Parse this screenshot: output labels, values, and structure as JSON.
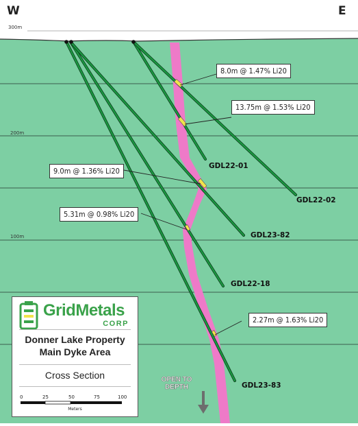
{
  "directions": {
    "west": "W",
    "east": "E"
  },
  "elevations": {
    "top": "300m",
    "mid": "200m",
    "low": "100m"
  },
  "holes": [
    {
      "id": "GDL22-01"
    },
    {
      "id": "GDL22-02"
    },
    {
      "id": "GDL23-82"
    },
    {
      "id": "GDL22-18"
    },
    {
      "id": "GDL23-83"
    }
  ],
  "assays": [
    {
      "text": "8.0m @ 1.47% Li20"
    },
    {
      "text": "13.75m @ 1.53% Li20"
    },
    {
      "text": "9.0m @ 1.36% Li20"
    },
    {
      "text": "5.31m @ 0.98% Li20"
    },
    {
      "text": "2.27m @ 1.63% Li20"
    }
  ],
  "logo": {
    "name": "GridMetals",
    "corp": "CORP"
  },
  "legend": {
    "line1": "Donner Lake Property",
    "line2": "Main Dyke Area",
    "section": "Cross Section",
    "scale_ticks": [
      "0",
      "25",
      "50",
      "75",
      "100"
    ],
    "scale_unit": "Meters"
  },
  "open_to_depth": {
    "line1": "OPEN TO",
    "line2": "DEPTH"
  },
  "colors": {
    "background": "#7dcfa3",
    "dyke": "#ee7ac8",
    "hole": "#178a3a",
    "intercept": "#f2e34b",
    "grid": "#2f4f40",
    "logo_green": "#3aa24a"
  }
}
